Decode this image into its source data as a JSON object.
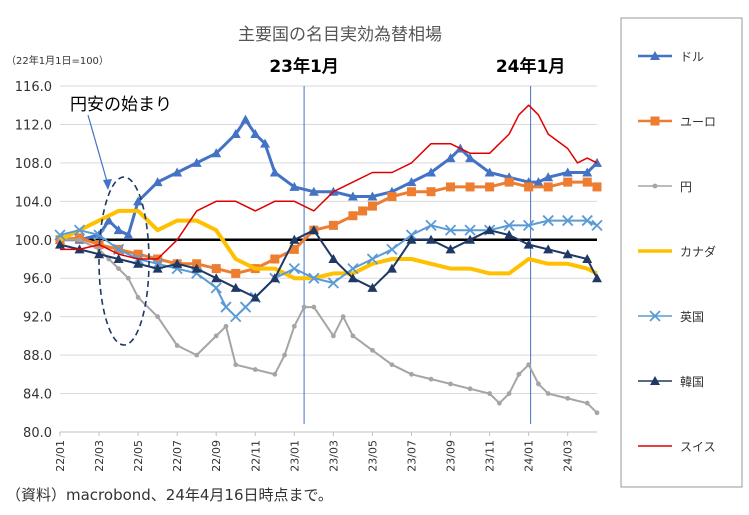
{
  "chart_data": {
    "type": "line",
    "title": "主要国の名目実効為替相場",
    "unit_note": "（22年1月1日=100）",
    "source": "（資料）macrobond、24年4月16日時点まで。",
    "ylim": [
      80,
      116
    ],
    "yticks": [
      "116.0",
      "112.0",
      "108.0",
      "104.0",
      "100.0",
      "96.0",
      "92.0",
      "88.0",
      "84.0",
      "80.0"
    ],
    "ytick_values": [
      116,
      112,
      108,
      104,
      100,
      96,
      92,
      88,
      84,
      80
    ],
    "xticks": [
      "22/01",
      "22/03",
      "22/05",
      "22/07",
      "22/09",
      "22/11",
      "23/01",
      "23/03",
      "23/05",
      "23/07",
      "23/09",
      "23/11",
      "24/01",
      "24/03"
    ],
    "xlim_months": [
      0,
      27.5
    ],
    "reference_line": 100,
    "vlines": [
      {
        "month": 12.5,
        "label": "23年1月"
      },
      {
        "month": 24.1,
        "label": "24年1月"
      }
    ],
    "annotation": "円安の始まり",
    "series": [
      {
        "name": "ドル",
        "color": "#4472C4",
        "marker": "triangle",
        "width": 3,
        "x": [
          0,
          1,
          2,
          2.5,
          3,
          3.5,
          4,
          5,
          6,
          7,
          8,
          9,
          9.5,
          10,
          10.5,
          11,
          12,
          13,
          14,
          15,
          16,
          17,
          18,
          19,
          20,
          20.5,
          21,
          22,
          23,
          24,
          24.5,
          25,
          26,
          27,
          27.5
        ],
        "values": [
          100,
          100,
          100.5,
          102,
          101,
          100.5,
          104,
          106,
          107,
          108,
          109,
          111,
          112.5,
          111,
          110,
          107,
          105.5,
          105,
          105,
          104.5,
          104.5,
          105,
          106,
          107,
          108.5,
          109.5,
          108.5,
          107,
          106.5,
          106,
          106,
          106.5,
          107,
          107,
          108
        ]
      },
      {
        "name": "ユーロ",
        "color": "#ED7D31",
        "marker": "square",
        "width": 3,
        "x": [
          0,
          1,
          2,
          3,
          4,
          5,
          6,
          7,
          8,
          9,
          10,
          11,
          12,
          13,
          14,
          15,
          15.5,
          16,
          17,
          18,
          19,
          20,
          21,
          22,
          23,
          24,
          25,
          26,
          27,
          27.5
        ],
        "values": [
          100,
          100.2,
          99.5,
          99,
          98.5,
          98,
          97.5,
          97.5,
          97,
          96.5,
          97,
          98,
          99,
          101,
          101.5,
          102.5,
          103,
          103.5,
          104.5,
          105,
          105,
          105.5,
          105.5,
          105.5,
          106,
          105.5,
          105.5,
          106,
          106,
          105.5
        ]
      },
      {
        "name": "円",
        "color": "#A5A5A5",
        "marker": "circle",
        "width": 2,
        "x": [
          0,
          1,
          2,
          2.5,
          3,
          3.5,
          4,
          5,
          6,
          7,
          8,
          8.5,
          9,
          10,
          11,
          11.5,
          12,
          12.5,
          13,
          14,
          14.5,
          15,
          16,
          17,
          18,
          19,
          20,
          21,
          22,
          22.5,
          23,
          23.5,
          24,
          24.5,
          25,
          26,
          27,
          27.5
        ],
        "values": [
          100,
          100,
          99,
          98,
          97,
          96,
          94,
          92,
          89,
          88,
          90,
          91,
          87,
          86.5,
          86,
          88,
          91,
          93,
          93,
          90,
          92,
          90,
          88.5,
          87,
          86,
          85.5,
          85,
          84.5,
          84,
          83,
          84,
          86,
          87,
          85,
          84,
          83.5,
          83,
          82
        ]
      },
      {
        "name": "カナダ",
        "color": "#FFC000",
        "marker": "none",
        "width": 4,
        "x": [
          0,
          1,
          2,
          3,
          4,
          5,
          6,
          7,
          8,
          9,
          10,
          11,
          12,
          13,
          14,
          15,
          16,
          17,
          18,
          19,
          20,
          21,
          22,
          23,
          24,
          25,
          26,
          27,
          27.5
        ],
        "values": [
          100,
          101,
          102,
          103,
          103,
          101,
          102,
          102,
          101,
          98,
          97,
          97,
          96,
          96,
          96.5,
          96.5,
          97.5,
          98,
          98,
          97.5,
          97,
          97,
          96.5,
          96.5,
          98,
          97.5,
          97.5,
          97,
          96.5
        ]
      },
      {
        "name": "英国",
        "color": "#5B9BD5",
        "marker": "x",
        "width": 2,
        "x": [
          0,
          1,
          2,
          3,
          4,
          5,
          6,
          7,
          8,
          8.5,
          9,
          9.5,
          10,
          11,
          12,
          13,
          14,
          15,
          16,
          17,
          18,
          19,
          20,
          21,
          22,
          23,
          24,
          25,
          26,
          27,
          27.5
        ],
        "values": [
          100.5,
          101,
          100.5,
          99,
          98,
          97.5,
          97,
          96.5,
          95,
          93,
          92,
          93,
          94,
          96,
          97,
          96,
          95.5,
          97,
          98,
          99,
          100.5,
          101.5,
          101,
          101,
          101,
          101.5,
          101.5,
          102,
          102,
          102,
          101.5
        ]
      },
      {
        "name": "韓国",
        "color": "#1F3864",
        "marker": "triangle",
        "width": 2,
        "x": [
          0,
          1,
          2,
          3,
          4,
          5,
          6,
          7,
          8,
          9,
          10,
          11,
          12,
          13,
          14,
          15,
          16,
          17,
          18,
          19,
          20,
          21,
          22,
          23,
          24,
          25,
          26,
          27,
          27.5
        ],
        "values": [
          99.5,
          99,
          98.5,
          98,
          97.5,
          97,
          97.5,
          97,
          96,
          95,
          94,
          96,
          100,
          101,
          98,
          96,
          95,
          97,
          100,
          100,
          99,
          100,
          101,
          100.5,
          99.5,
          99,
          98.5,
          98,
          96
        ]
      },
      {
        "name": "スイス",
        "color": "#E00000",
        "marker": "none",
        "width": 1.5,
        "x": [
          0,
          1,
          2,
          3,
          4,
          5,
          6,
          7,
          8,
          9,
          10,
          11,
          12,
          13,
          14,
          15,
          16,
          17,
          18,
          19,
          20,
          21,
          22,
          23,
          23.5,
          24,
          24.5,
          25,
          26,
          26.5,
          27,
          27.5
        ],
        "values": [
          99,
          99,
          99.5,
          98.5,
          98,
          98,
          100,
          103,
          104,
          104,
          103,
          104,
          104,
          103,
          105,
          106,
          107,
          107,
          108,
          110,
          110,
          109,
          109,
          111,
          113,
          114,
          113,
          111,
          109.5,
          108,
          108.5,
          108
        ]
      }
    ]
  }
}
